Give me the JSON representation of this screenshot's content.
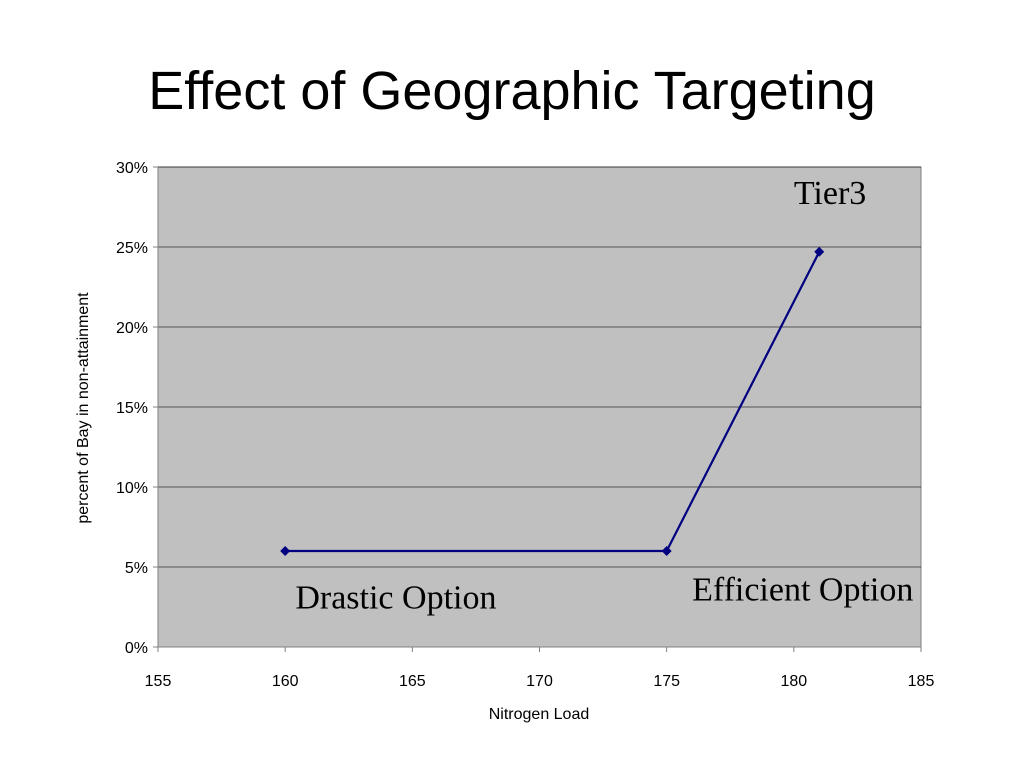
{
  "slide": {
    "title": "Effect of Geographic Targeting"
  },
  "chart_data": {
    "type": "line",
    "xlabel": "Nitrogen Load",
    "ylabel": "percent of Bay in non-attainment",
    "xlim": [
      155,
      185
    ],
    "ylim": [
      0,
      0.3
    ],
    "x_ticks": [
      155,
      160,
      165,
      170,
      175,
      180,
      185
    ],
    "y_ticks": [
      0,
      0.05,
      0.1,
      0.15,
      0.2,
      0.25,
      0.3
    ],
    "y_tick_labels": [
      "0%",
      "5%",
      "10%",
      "15%",
      "20%",
      "25%",
      "30%"
    ],
    "grid": "horizontal",
    "plot_background": "#c0c0c0",
    "series": [
      {
        "color": "#000080",
        "marker": "diamond",
        "x": [
          160,
          175,
          181
        ],
        "y": [
          0.06,
          0.06,
          0.247
        ]
      }
    ],
    "annotations": [
      {
        "text": "Tier3",
        "x": 180,
        "y": 0.277
      },
      {
        "text": "Efficient Option",
        "x": 176,
        "y": 0.029
      },
      {
        "text": "Drastic Option",
        "x": 160.4,
        "y": 0.024
      }
    ]
  }
}
